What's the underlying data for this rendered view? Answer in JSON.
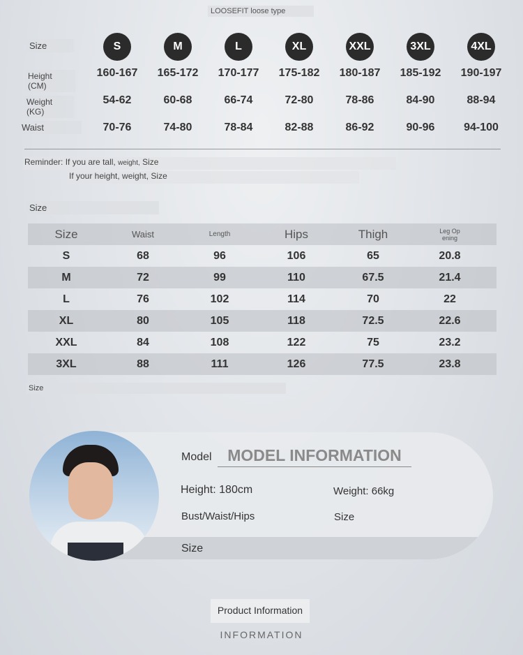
{
  "header": {
    "title": "LOOSEFIT loose type"
  },
  "size_chart": {
    "size_label": "Size",
    "height_label": "Height (CM)",
    "weight_label": "Weight (KG)",
    "waist_label": "Waist",
    "sizes": [
      "S",
      "M",
      "L",
      "XL",
      "XXL",
      "3XL",
      "4XL"
    ],
    "heights": [
      "160-167",
      "165-172",
      "170-177",
      "175-182",
      "180-187",
      "185-192",
      "190-197"
    ],
    "weights": [
      "54-62",
      "60-68",
      "66-74",
      "72-80",
      "78-86",
      "84-90",
      "88-94"
    ],
    "waists": [
      "70-76",
      "74-80",
      "78-84",
      "82-88",
      "86-92",
      "90-96",
      "94-100"
    ]
  },
  "reminder": {
    "label": "Reminder:",
    "line1": "If you are tall,",
    "line1_small": "weight,",
    "line1_end": "Size",
    "line2": "If your height, weight, Size"
  },
  "measure_table": {
    "title": "Size",
    "footnote": "Size",
    "headers": [
      "Size",
      "Waist",
      "Length",
      "Hips",
      "Thigh",
      "Leg Op\nening"
    ],
    "rows": [
      [
        "S",
        "68",
        "96",
        "106",
        "65",
        "20.8"
      ],
      [
        "M",
        "72",
        "99",
        "110",
        "67.5",
        "21.4"
      ],
      [
        "L",
        "76",
        "102",
        "114",
        "70",
        "22"
      ],
      [
        "XL",
        "80",
        "105",
        "118",
        "72.5",
        "22.6"
      ],
      [
        "XXL",
        "84",
        "108",
        "122",
        "75",
        "23.2"
      ],
      [
        "3XL",
        "88",
        "111",
        "126",
        "77.5",
        "23.8"
      ]
    ]
  },
  "model": {
    "label": "Model",
    "title": "MODEL INFORMATION",
    "height": "Height: 180cm",
    "weight": "Weight: 66kg",
    "bwh": "Bust/Waist/Hips",
    "size_right": "Size",
    "size_band": "Size"
  },
  "footer": {
    "label": "Product Information",
    "sub": "INFORMATION"
  }
}
